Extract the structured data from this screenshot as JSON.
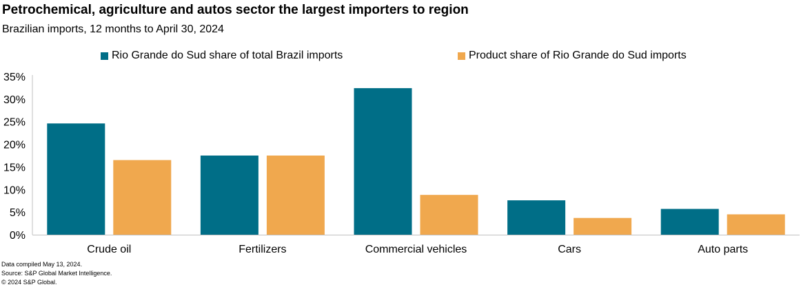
{
  "chart_data": {
    "type": "bar",
    "title": "Petrochemical, agriculture and autos sector the largest importers to region",
    "subtitle": "Brazilian imports, 12 months to April 30, 2024",
    "categories": [
      "Crude oil",
      "Fertilizers",
      "Commercial vehicles",
      "Cars",
      "Auto parts"
    ],
    "series": [
      {
        "name": "Rio Grande do Sud share of total Brazil imports",
        "color": "#006e87",
        "values": [
          24.6,
          17.5,
          32.4,
          7.6,
          5.7
        ]
      },
      {
        "name": "Product share of Rio Grande do Sud imports",
        "color": "#f0a84e",
        "values": [
          16.5,
          17.5,
          8.8,
          3.7,
          4.5
        ]
      }
    ],
    "ylim": [
      0,
      35
    ],
    "yticks": [
      0,
      5,
      10,
      15,
      20,
      25,
      30,
      35
    ],
    "ytick_labels": [
      "0%",
      "5%",
      "10%",
      "15%",
      "20%",
      "25%",
      "30%",
      "35%"
    ],
    "xlabel": "",
    "ylabel": "",
    "legend_position": "top-center",
    "grid": false
  },
  "footer": {
    "line1": "Data compiled May 13, 2024.",
    "line2": "Source: S&P Global Market Intelligence.",
    "line3": "© 2024 S&P Global."
  }
}
